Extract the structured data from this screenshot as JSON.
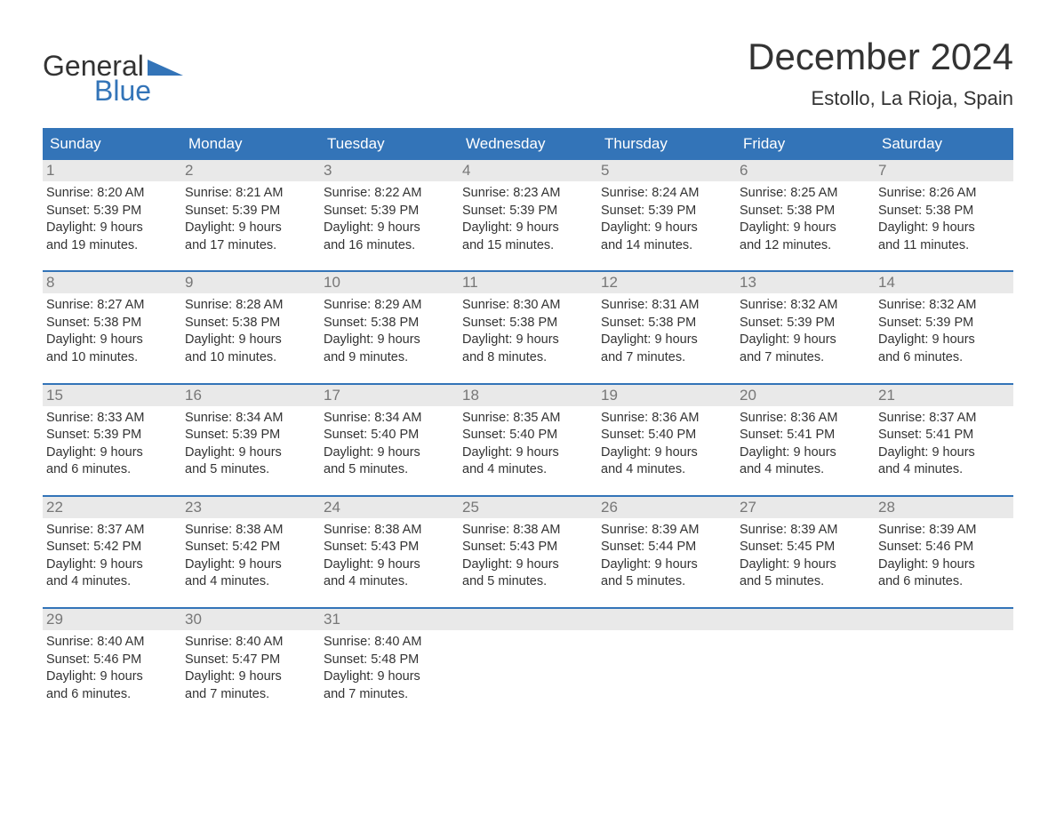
{
  "logo": {
    "text_top": "General",
    "text_bottom": "Blue",
    "top_color": "#333333",
    "bottom_color": "#3374b8",
    "shape_color": "#3374b8"
  },
  "title": "December 2024",
  "location": "Estollo, La Rioja, Spain",
  "colors": {
    "header_bg": "#3374b8",
    "header_text": "#ffffff",
    "daynum_bg": "#e9e9e9",
    "daynum_text": "#777777",
    "body_text": "#333333",
    "row_border": "#3374b8",
    "page_bg": "#ffffff"
  },
  "fonts": {
    "body_pt": 14.5,
    "daynum_pt": 17,
    "weekday_pt": 17,
    "title_pt": 42,
    "location_pt": 22,
    "family": "Arial"
  },
  "labels": {
    "sunrise": "Sunrise",
    "sunset": "Sunset",
    "daylight": "Daylight"
  },
  "weekdays": [
    "Sunday",
    "Monday",
    "Tuesday",
    "Wednesday",
    "Thursday",
    "Friday",
    "Saturday"
  ],
  "weeks": [
    [
      {
        "day": 1,
        "sunrise": "8:20 AM",
        "sunset": "5:39 PM",
        "daylight_l1": "9 hours",
        "daylight_l2": "and 19 minutes."
      },
      {
        "day": 2,
        "sunrise": "8:21 AM",
        "sunset": "5:39 PM",
        "daylight_l1": "9 hours",
        "daylight_l2": "and 17 minutes."
      },
      {
        "day": 3,
        "sunrise": "8:22 AM",
        "sunset": "5:39 PM",
        "daylight_l1": "9 hours",
        "daylight_l2": "and 16 minutes."
      },
      {
        "day": 4,
        "sunrise": "8:23 AM",
        "sunset": "5:39 PM",
        "daylight_l1": "9 hours",
        "daylight_l2": "and 15 minutes."
      },
      {
        "day": 5,
        "sunrise": "8:24 AM",
        "sunset": "5:39 PM",
        "daylight_l1": "9 hours",
        "daylight_l2": "and 14 minutes."
      },
      {
        "day": 6,
        "sunrise": "8:25 AM",
        "sunset": "5:38 PM",
        "daylight_l1": "9 hours",
        "daylight_l2": "and 12 minutes."
      },
      {
        "day": 7,
        "sunrise": "8:26 AM",
        "sunset": "5:38 PM",
        "daylight_l1": "9 hours",
        "daylight_l2": "and 11 minutes."
      }
    ],
    [
      {
        "day": 8,
        "sunrise": "8:27 AM",
        "sunset": "5:38 PM",
        "daylight_l1": "9 hours",
        "daylight_l2": "and 10 minutes."
      },
      {
        "day": 9,
        "sunrise": "8:28 AM",
        "sunset": "5:38 PM",
        "daylight_l1": "9 hours",
        "daylight_l2": "and 10 minutes."
      },
      {
        "day": 10,
        "sunrise": "8:29 AM",
        "sunset": "5:38 PM",
        "daylight_l1": "9 hours",
        "daylight_l2": "and 9 minutes."
      },
      {
        "day": 11,
        "sunrise": "8:30 AM",
        "sunset": "5:38 PM",
        "daylight_l1": "9 hours",
        "daylight_l2": "and 8 minutes."
      },
      {
        "day": 12,
        "sunrise": "8:31 AM",
        "sunset": "5:38 PM",
        "daylight_l1": "9 hours",
        "daylight_l2": "and 7 minutes."
      },
      {
        "day": 13,
        "sunrise": "8:32 AM",
        "sunset": "5:39 PM",
        "daylight_l1": "9 hours",
        "daylight_l2": "and 7 minutes."
      },
      {
        "day": 14,
        "sunrise": "8:32 AM",
        "sunset": "5:39 PM",
        "daylight_l1": "9 hours",
        "daylight_l2": "and 6 minutes."
      }
    ],
    [
      {
        "day": 15,
        "sunrise": "8:33 AM",
        "sunset": "5:39 PM",
        "daylight_l1": "9 hours",
        "daylight_l2": "and 6 minutes."
      },
      {
        "day": 16,
        "sunrise": "8:34 AM",
        "sunset": "5:39 PM",
        "daylight_l1": "9 hours",
        "daylight_l2": "and 5 minutes."
      },
      {
        "day": 17,
        "sunrise": "8:34 AM",
        "sunset": "5:40 PM",
        "daylight_l1": "9 hours",
        "daylight_l2": "and 5 minutes."
      },
      {
        "day": 18,
        "sunrise": "8:35 AM",
        "sunset": "5:40 PM",
        "daylight_l1": "9 hours",
        "daylight_l2": "and 4 minutes."
      },
      {
        "day": 19,
        "sunrise": "8:36 AM",
        "sunset": "5:40 PM",
        "daylight_l1": "9 hours",
        "daylight_l2": "and 4 minutes."
      },
      {
        "day": 20,
        "sunrise": "8:36 AM",
        "sunset": "5:41 PM",
        "daylight_l1": "9 hours",
        "daylight_l2": "and 4 minutes."
      },
      {
        "day": 21,
        "sunrise": "8:37 AM",
        "sunset": "5:41 PM",
        "daylight_l1": "9 hours",
        "daylight_l2": "and 4 minutes."
      }
    ],
    [
      {
        "day": 22,
        "sunrise": "8:37 AM",
        "sunset": "5:42 PM",
        "daylight_l1": "9 hours",
        "daylight_l2": "and 4 minutes."
      },
      {
        "day": 23,
        "sunrise": "8:38 AM",
        "sunset": "5:42 PM",
        "daylight_l1": "9 hours",
        "daylight_l2": "and 4 minutes."
      },
      {
        "day": 24,
        "sunrise": "8:38 AM",
        "sunset": "5:43 PM",
        "daylight_l1": "9 hours",
        "daylight_l2": "and 4 minutes."
      },
      {
        "day": 25,
        "sunrise": "8:38 AM",
        "sunset": "5:43 PM",
        "daylight_l1": "9 hours",
        "daylight_l2": "and 5 minutes."
      },
      {
        "day": 26,
        "sunrise": "8:39 AM",
        "sunset": "5:44 PM",
        "daylight_l1": "9 hours",
        "daylight_l2": "and 5 minutes."
      },
      {
        "day": 27,
        "sunrise": "8:39 AM",
        "sunset": "5:45 PM",
        "daylight_l1": "9 hours",
        "daylight_l2": "and 5 minutes."
      },
      {
        "day": 28,
        "sunrise": "8:39 AM",
        "sunset": "5:46 PM",
        "daylight_l1": "9 hours",
        "daylight_l2": "and 6 minutes."
      }
    ],
    [
      {
        "day": 29,
        "sunrise": "8:40 AM",
        "sunset": "5:46 PM",
        "daylight_l1": "9 hours",
        "daylight_l2": "and 6 minutes."
      },
      {
        "day": 30,
        "sunrise": "8:40 AM",
        "sunset": "5:47 PM",
        "daylight_l1": "9 hours",
        "daylight_l2": "and 7 minutes."
      },
      {
        "day": 31,
        "sunrise": "8:40 AM",
        "sunset": "5:48 PM",
        "daylight_l1": "9 hours",
        "daylight_l2": "and 7 minutes."
      },
      null,
      null,
      null,
      null
    ]
  ]
}
